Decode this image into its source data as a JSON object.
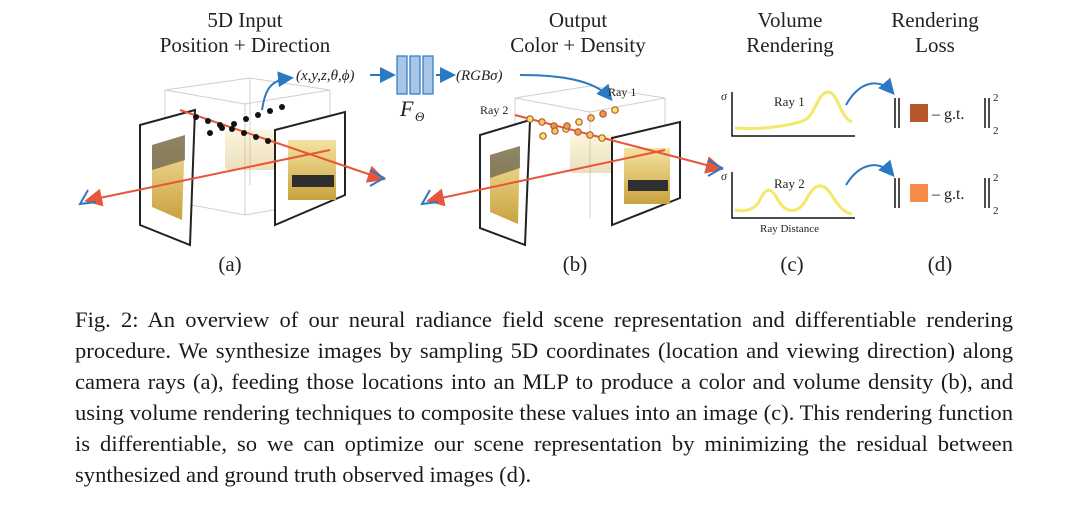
{
  "headers": {
    "a_line1": "5D Input",
    "a_line2": "Position + Direction",
    "b_line1": "Output",
    "b_line2": "Color + Density",
    "c_line1": "Volume",
    "c_line2": "Rendering",
    "d_line1": "Rendering",
    "d_line2": "Loss"
  },
  "annotations": {
    "input_tuple": "(x,y,z,θ,ϕ)",
    "output_tuple": "(RGBσ)",
    "network_symbol": "F",
    "network_subscript": "Θ",
    "ray1": "Ray 1",
    "ray2": "Ray 2",
    "plot_ray1": "Ray 1",
    "plot_ray2": "Ray 2",
    "sigma": "σ",
    "ray_distance": "Ray Distance",
    "gt": "g.t.",
    "minus": "–",
    "norm_sup": "2",
    "norm_sub": "2"
  },
  "panel_labels": [
    "(a)",
    "(b)",
    "(c)",
    "(d)"
  ],
  "colors": {
    "ray_red": "#e8563a",
    "arrow_blue": "#2b79c2",
    "density_yellow": "#f3e86a",
    "mlp_blue": "#a8c6e6",
    "loss_color_1": "#b7572b",
    "loss_color_2": "#f58b46"
  },
  "caption": {
    "label": "Fig. 2:",
    "text": "An overview of our neural radiance field scene representation and differentiable rendering procedure. We synthesize images by sampling 5D coordinates (location and viewing direction) along camera rays (a), feeding those locations into an MLP to produce a color and volume density (b), and using volume rendering techniques to composite these values into an image (c). This rendering function is differentiable, so we can optimize our scene representation by minimizing the residual between synthesized and ground truth observed images (d)."
  }
}
